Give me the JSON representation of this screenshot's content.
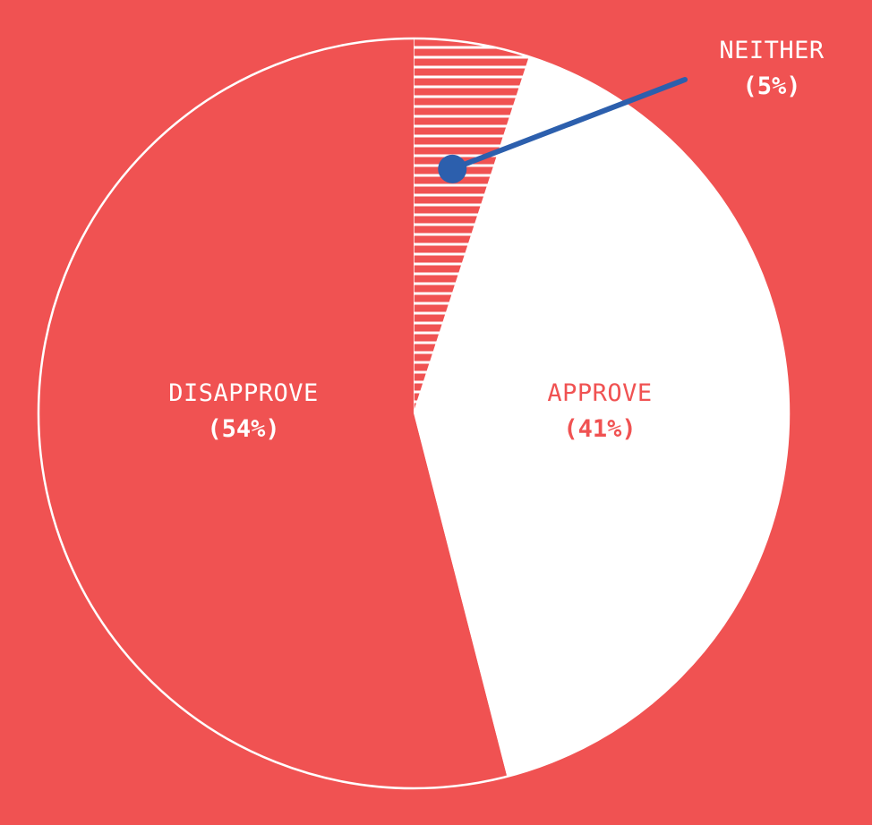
{
  "colors": {
    "background": "#f05252",
    "approve": "#ffffff",
    "disapprove": "#f05252",
    "neither_stripe": "#ffffff",
    "outline": "#ffffff",
    "label_on_red": "#ffffff",
    "label_on_white": "#f05252",
    "callout": "#2c5fad"
  },
  "chart_data": {
    "type": "pie",
    "title": "",
    "start": "top",
    "direction": "clockwise",
    "slices": [
      {
        "label": "NEITHER",
        "percent_label": "(5%)",
        "value": 5,
        "fill": "stripes",
        "label_placement": "callout"
      },
      {
        "label": "APPROVE",
        "percent_label": "(41%)",
        "value": 41,
        "fill": "solid-white",
        "label_placement": "inside"
      },
      {
        "label": "DISAPPROVE",
        "percent_label": "(54%)",
        "value": 54,
        "fill": "solid-red",
        "label_placement": "inside"
      }
    ]
  }
}
